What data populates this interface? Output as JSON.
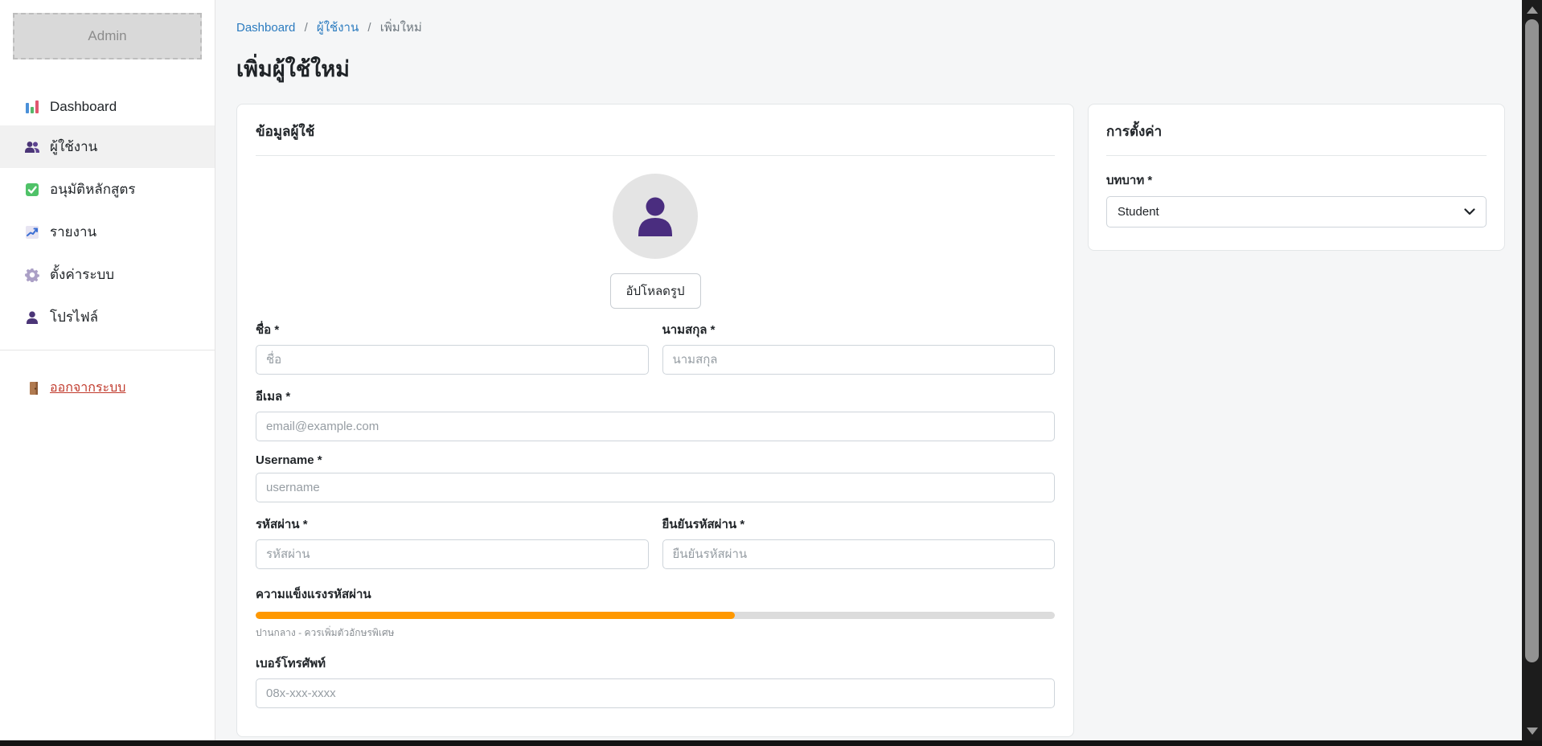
{
  "sidebar": {
    "logo_text": "Admin",
    "items": [
      {
        "label": "Dashboard",
        "icon": "bar-chart"
      },
      {
        "label": "ผู้ใช้งาน",
        "icon": "users",
        "active": true
      },
      {
        "label": "อนุมัติหลักสูตร",
        "icon": "check-box"
      },
      {
        "label": "รายงาน",
        "icon": "chart-increasing"
      },
      {
        "label": "ตั้งค่าระบบ",
        "icon": "gear"
      },
      {
        "label": "โปรไฟล์",
        "icon": "person"
      }
    ],
    "logout_label": "ออกจากระบบ"
  },
  "breadcrumb": {
    "separator": "/",
    "items": [
      "Dashboard",
      "ผู้ใช้งาน",
      "เพิ่มใหม่"
    ]
  },
  "page_title": "เพิ่มผู้ใช้ใหม่",
  "user_form": {
    "card_title": "ข้อมูลผู้ใช้",
    "upload_button": "อัปโหลดรูป",
    "required_mark": "*",
    "fields": {
      "first_name": {
        "label": "ชื่อ",
        "placeholder": "ชื่อ",
        "required": true
      },
      "last_name": {
        "label": "นามสกุล",
        "placeholder": "นามสกุล",
        "required": true
      },
      "email": {
        "label": "อีเมล",
        "placeholder": "email@example.com",
        "required": true
      },
      "username": {
        "label": "Username",
        "placeholder": "username",
        "required": true
      },
      "password": {
        "label": "รหัสผ่าน",
        "placeholder": "รหัสผ่าน",
        "required": true
      },
      "confirm_password": {
        "label": "ยืนยันรหัสผ่าน",
        "placeholder": "ยืนยันรหัสผ่าน",
        "required": true
      },
      "phone": {
        "label": "เบอร์โทรศัพท์",
        "placeholder": "08x-xxx-xxxx",
        "required": false
      }
    },
    "password_strength": {
      "label": "ความแข็งแรงรหัสผ่าน",
      "percent": 60,
      "bar_color": "#ff9800",
      "track_color": "#dcdcdc",
      "helper": "ปานกลาง - ควรเพิ่มตัวอักษรพิเศษ"
    }
  },
  "settings_panel": {
    "card_title": "การตั้งค่า",
    "role_label": "บทบาท",
    "required_mark": "*",
    "role_value": "Student"
  },
  "colors": {
    "link_blue": "#2b7bbf",
    "logout_red": "#c0392b",
    "icon_purple": "#4b3577",
    "active_item_bg": "#f1f1f1",
    "main_bg": "#f5f6f7"
  }
}
